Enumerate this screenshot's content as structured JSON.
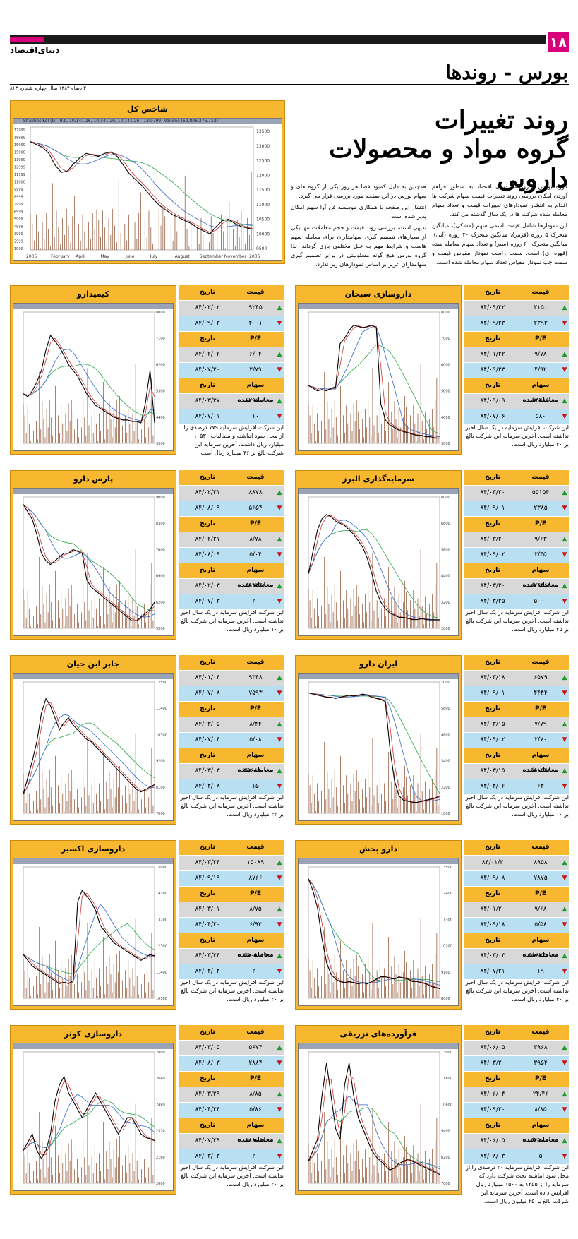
{
  "header": {
    "page_number": "۱۸",
    "brand": "دنیای‌اقتصاد",
    "section": "بورس - روندها",
    "dateline": "۲ دیماه ۱۳۸۴ سال چهارم شماره ۸۱۳"
  },
  "headline": {
    "line1": "روند تغییرات",
    "line2": "گروه مواد و محصولات دارویی"
  },
  "intro": {
    "col_right": [
      "گروه بورس - روزنامه دنیای اقتصاد به منظور فراهم آوردن امکان بررسی روند تغییرات قیمت سهام شرکت ها اقدام به انتشار نمودارهای تغییرات قیمت و تعداد سهام معامله شده شرکت ها در یک سال گذشته می کند.",
      "این نمودارها شامل قیمت اسمی سهم (مشکی)، میانگین متحرک ۵ روزه (قرمز)، میانگین متحرک ۲۰ روزه (آبی)، میانگین متحرک ۶۰ روزه (سبز) و تعداد سهام معامله شده (قهوه ای) است. سمت راست نمودار مقیاس قیمت و سمت چپ نمودار مقیاس تعداد سهام معامله شده است."
    ],
    "col_left": [
      "همچنین به دلیل کمبود فضا هر روز یکی از گروه های و سهام بورس در این صفحه مورد بررسی قرار می گیرد.",
      "انتشار این صفحه با همکاری موسسه فن آوا سهم امکان پذیر شده است.",
      "بدیهی است، بررسی روند قیمت و حجم معاملات تنها یکی از معیارهای تصمیم گیری سهامداران برای معامله سهم هاست و شرایط مهم به علل مختلفی بازی گرداند. لذا گروه بورس هیچ گونه مسئولیتی در برابر تصمیم گیری سهامداران عزیز بر اساس نمودارهای زیر ندارد."
    ]
  },
  "index": {
    "title": "شاخص کل",
    "topbar": "Shakhes Kol (D) (9.9, 10,141.26, 10,141.26, 10,141.26, -13.0799) Volume (69,806,276,712)",
    "chart_data": {
      "type": "line",
      "x_labels": [
        "2005",
        "February",
        "April",
        "May",
        "June",
        "July",
        "August",
        "September",
        "November",
        "2006"
      ],
      "y_ticks": [
        "13500",
        "13000",
        "12500",
        "12000",
        "11500",
        "11000",
        "10500",
        "10000",
        "9500"
      ],
      "y_left_ticks": [
        "17999",
        "16999",
        "15999",
        "15000",
        "13999",
        "12999",
        "11999",
        "11000",
        "9999",
        "8999",
        "7999",
        "6999",
        "5999",
        "4999",
        "3999",
        "2999",
        "1999"
      ],
      "price": [
        13100,
        13000,
        12900,
        12700,
        12300,
        12050,
        12100,
        12350,
        12550,
        12700,
        12650,
        12600,
        12700,
        12750,
        12600,
        12300,
        12000,
        11800,
        11600,
        11350,
        11100,
        10900,
        10750,
        10600,
        10500,
        10400,
        10300,
        10150,
        10050,
        9950,
        10200,
        10400,
        10450,
        10300,
        10200,
        10150,
        10100
      ],
      "ylim": [
        9400,
        13600
      ]
    }
  },
  "stocks": [
    {
      "name": "داروسازی سبحان",
      "headers": {
        "price": "قیمت",
        "date": "تاریخ",
        "pe": "P/E",
        "vol": "سهام معامله شده"
      },
      "price_rows": [
        {
          "val": "۲۱۵۰",
          "date": "۸۴/۰۹/۲۲",
          "dir": "up"
        },
        {
          "val": "۲۳۹۳",
          "date": "۸۴/۰۹/۲۳",
          "dir": "down"
        }
      ],
      "pe_rows": [
        {
          "val": "۹/۷۸",
          "date": "۸۴/۰۱/۲۲",
          "dir": "up"
        },
        {
          "val": "۴/۹۲",
          "date": "۸۴/۰۹/۲۳",
          "dir": "down"
        }
      ],
      "vol_rows": [
        {
          "val": "۳۴۴۸۵",
          "date": "۸۴/۰۹/۰۹",
          "dir": "up"
        },
        {
          "val": "۵۸۰",
          "date": "۸۴/۰۷/۰۶",
          "dir": "down"
        }
      ],
      "note": "این شرکت افزایش سرمایه در یک سال اخیر نداشته است. آخرین سرمایه این شرکت بالغ بر ۲۰ میلیارد ریال است.",
      "chart_data": {
        "type": "line",
        "price": [
          5200,
          5100,
          5000,
          5050,
          5000,
          5100,
          5150,
          6800,
          7000,
          7300,
          7500,
          7450,
          7400,
          7450,
          7500,
          7400,
          4500,
          3900,
          3700,
          3600,
          3500,
          3450,
          3400,
          3350,
          3300,
          3300,
          3250,
          3250,
          3200,
          3200
        ],
        "ylim": [
          3000,
          8000
        ]
      }
    },
    {
      "name": "کیمیدارو",
      "headers": {
        "price": "قیمت",
        "date": "تاریخ",
        "pe": "P/E",
        "vol": "سهام معامله شده"
      },
      "price_rows": [
        {
          "val": "۹۲۴۵",
          "date": "۸۴/۰۲/۰۲",
          "dir": "up"
        },
        {
          "val": "۴۰۰۱",
          "date": "۸۴/۰۹/۰۳",
          "dir": "down"
        }
      ],
      "pe_rows": [
        {
          "val": "۶/۰۴",
          "date": "۸۴/۰۲/۰۲",
          "dir": "up"
        },
        {
          "val": "۲/۷۹",
          "date": "۸۴/۰۷/۲۰",
          "dir": "down"
        }
      ],
      "vol_rows": [
        {
          "val": "۱۲۹۶۰۸",
          "date": "۸۴/۰۳/۲۷",
          "dir": "up"
        },
        {
          "val": "۱۰",
          "date": "۸۴/۰۷/۰۱",
          "dir": "down"
        }
      ],
      "note": "این شرکت افزایش سرمایه ۷۷۹ درصدی را از محل سود انباشته و مطالبات ۱۰۵۳۰ میلیارد ریال داشت. آخرین سرمایه این شرکت بالغ بر ۳۶ میلیارد ریال است.",
      "chart_data": {
        "type": "line",
        "price": [
          5200,
          5100,
          5300,
          5600,
          6000,
          6700,
          7200,
          7000,
          6800,
          6500,
          6200,
          6000,
          5800,
          5500,
          5200,
          5000,
          4800,
          4700,
          4600,
          4500,
          4400,
          4350,
          4300,
          4300,
          4250,
          4250,
          4200,
          4900,
          6000,
          4200
        ],
        "ylim": [
          3500,
          8000
        ]
      }
    },
    {
      "name": "سرمایه‌گذاری البرز",
      "headers": {
        "price": "قیمت",
        "date": "تاریخ",
        "pe": "P/E",
        "vol": "سهام معامله شده"
      },
      "price_rows": [
        {
          "val": "۵۵۱۵۴",
          "date": "۸۴/۰۳/۲۰",
          "dir": "up"
        },
        {
          "val": "۲۳۸۵",
          "date": "۸۴/۰۹/۰۱",
          "dir": "down"
        }
      ],
      "pe_rows": [
        {
          "val": "۹/۶۳",
          "date": "۸۴/۰۳/۲۰",
          "dir": "up"
        },
        {
          "val": "۲/۴۵",
          "date": "۸۴/۰۹/۰۲",
          "dir": "down"
        }
      ],
      "vol_rows": [
        {
          "val": "۲۷۴۴۶۴",
          "date": "۸۴/۰۳/۲۰",
          "dir": "up"
        },
        {
          "val": "۵۰۰۰",
          "date": "۸۴/۰۳/۲۵",
          "dir": "down"
        }
      ],
      "note": "این شرکت افزایش سرمایه در یک سال اخیر نداشته است. آخرین سرمایه این شرکت بالغ بر ۲۵ میلیارد ریال است.",
      "chart_data": {
        "type": "line",
        "price": [
          4500,
          5500,
          6500,
          7000,
          7200,
          7100,
          6900,
          6800,
          6700,
          6500,
          6300,
          6000,
          5700,
          5200,
          4500,
          3700,
          3200,
          2900,
          2700,
          2600,
          2500,
          2500,
          2450,
          2400,
          2400,
          2450,
          2400,
          2380,
          2390,
          2385
        ],
        "ylim": [
          2000,
          8000
        ]
      }
    },
    {
      "name": "پارس دارو",
      "headers": {
        "price": "قیمت",
        "date": "تاریخ",
        "pe": "P/E",
        "vol": "سهام معامله شده"
      },
      "price_rows": [
        {
          "val": "۸۸۷۸",
          "date": "۸۴/۰۲/۲۱",
          "dir": "up"
        },
        {
          "val": "۵۶۵۴",
          "date": "۸۴/۰۸/۰۹",
          "dir": "down"
        }
      ],
      "pe_rows": [
        {
          "val": "۸/۷۸",
          "date": "۸۴/۰۲/۲۱",
          "dir": "up"
        },
        {
          "val": "۵/۰۴",
          "date": "۸۴/۰۸/۰۹",
          "dir": "down"
        }
      ],
      "vol_rows": [
        {
          "val": "۴۹۳۳۴۲",
          "date": "۸۴/۰۲/۰۳",
          "dir": "up"
        },
        {
          "val": "۲۰",
          "date": "۸۴/۰۷/۰۳",
          "dir": "down"
        }
      ],
      "note": "این شرکت افزایش سرمایه در یک سال اخیر نداشته است. آخرین سرمایه این شرکت بالغ بر ۱۰ میلیارد ریال است.",
      "chart_data": {
        "type": "line",
        "price": [
          8800,
          8600,
          8400,
          8000,
          7500,
          7300,
          7200,
          7300,
          7400,
          7500,
          7500,
          7600,
          7550,
          7500,
          6800,
          6600,
          6500,
          6400,
          6300,
          6200,
          6100,
          6000,
          5900,
          5800,
          5700,
          5700,
          5800,
          5900,
          6000,
          6200
        ],
        "ylim": [
          5500,
          9000
        ]
      }
    },
    {
      "name": "ایران دارو",
      "headers": {
        "price": "قیمت",
        "date": "تاریخ",
        "pe": "P/E",
        "vol": "سهام معامله شده"
      },
      "price_rows": [
        {
          "val": "۶۵۷۹",
          "date": "۸۴/۰۳/۱۸",
          "dir": "up"
        },
        {
          "val": "۴۴۴۴",
          "date": "۸۴/۰۹/۰۱",
          "dir": "down"
        }
      ],
      "pe_rows": [
        {
          "val": "۷/۷۹",
          "date": "۸۴/۰۳/۱۵",
          "dir": "up"
        },
        {
          "val": "۲/۷۰",
          "date": "۸۴/۰۹/۰۲",
          "dir": "down"
        }
      ],
      "vol_rows": [
        {
          "val": "۵۵۱۵۴۳",
          "date": "۸۴/۰۳/۱۵",
          "dir": "up"
        },
        {
          "val": "۶۴",
          "date": "۸۴/۰۴/۰۶",
          "dir": "down"
        }
      ],
      "note": "این شرکت افزایش سرمایه در یک سال اخیر نداشته است. آخرین سرمایه این شرکت بالغ بر ۱۰ میلیارد ریال است.",
      "chart_data": {
        "type": "line",
        "price": [
          6500,
          6450,
          6400,
          6350,
          6300,
          6300,
          6250,
          6300,
          6350,
          6400,
          6350,
          6400,
          6450,
          6400,
          6300,
          6250,
          6200,
          6100,
          4000,
          2500,
          1800,
          1600,
          1550,
          1500,
          1500,
          1550,
          1600,
          1650,
          1700,
          1800
        ],
        "ylim": [
          1000,
          7000
        ]
      }
    },
    {
      "name": "جابر ابن حیان",
      "headers": {
        "price": "قیمت",
        "date": "تاریخ",
        "pe": "P/E",
        "vol": "سهام معامله شده"
      },
      "price_rows": [
        {
          "val": "۹۳۴۸",
          "date": "۸۴/۰۱/۰۴",
          "dir": "up"
        },
        {
          "val": "۷۵۹۳",
          "date": "۸۴/۰۷/۰۸",
          "dir": "down"
        }
      ],
      "pe_rows": [
        {
          "val": "۸/۴۴",
          "date": "۸۴/۰۳/۰۵",
          "dir": "up"
        },
        {
          "val": "۵/۰۸",
          "date": "۸۴/۰۷/۰۴",
          "dir": "down"
        }
      ],
      "vol_rows": [
        {
          "val": "۳۵۶۶۹۰۰",
          "date": "۸۴/۰۳/۰۳",
          "dir": "up"
        },
        {
          "val": "۱۵",
          "date": "۸۴/۰۴/۰۸",
          "dir": "down"
        }
      ],
      "note": "این شرکت افزایش سرمایه در یک سال اخیر نداشته است. آخرین سرمایه این شرکت بالغ بر ۳۲ میلیارد ریال است.",
      "chart_data": {
        "type": "line",
        "price": [
          7800,
          8500,
          9200,
          10000,
          11200,
          11800,
          11500,
          11000,
          10500,
          10800,
          11000,
          10700,
          10500,
          10300,
          10100,
          10000,
          9800,
          9600,
          9400,
          9200,
          9000,
          8800,
          8600,
          8400,
          8200,
          8000,
          7900,
          8000,
          8100,
          8200
        ],
        "ylim": [
          7000,
          12500
        ]
      }
    },
    {
      "name": "دارو پخش",
      "headers": {
        "price": "قیمت",
        "date": "تاریخ",
        "pe": "P/E",
        "vol": "سهام معامله شده"
      },
      "price_rows": [
        {
          "val": "۸۹۵۸",
          "date": "۸۴/۰۱/۲",
          "dir": "up"
        },
        {
          "val": "۷۸۷۵",
          "date": "۸۴/۰۹/۰۸",
          "dir": "down"
        }
      ],
      "pe_rows": [
        {
          "val": "۹/۶۸",
          "date": "۸۴/۰۱/۲۰",
          "dir": "up"
        },
        {
          "val": "۵/۵۸",
          "date": "۸۴/۰۹/۱۸",
          "dir": "down"
        }
      ],
      "vol_rows": [
        {
          "val": "۴۸۸۳۴۰۰",
          "date": "۸۴/۰۳/۰۳",
          "dir": "up"
        },
        {
          "val": "۱۹",
          "date": "۸۴/۰۷/۲۱",
          "dir": "down"
        }
      ],
      "note": "این شرکت افزایش سرمایه در یک سال اخیر نداشته است. آخرین سرمایه این شرکت بالغ بر ۳۰ میلیارد ریال است.",
      "chart_data": {
        "type": "line",
        "price": [
          13000,
          12500,
          11800,
          10500,
          9500,
          9000,
          8800,
          8700,
          8650,
          8700,
          8650,
          8600,
          8650,
          8600,
          8700,
          8800,
          8900,
          8900,
          8850,
          8800,
          8900,
          8850,
          8800,
          8700,
          8700,
          8650,
          8600,
          8500,
          8450,
          8400
        ],
        "ylim": [
          8000,
          13500
        ]
      }
    },
    {
      "name": "داروسازی اکسیر",
      "headers": {
        "price": "قیمت",
        "date": "تاریخ",
        "pe": "P/E",
        "vol": "سهام معامله شده"
      },
      "price_rows": [
        {
          "val": "۱۵۰۸۹",
          "date": "۸۴/۰۳/۲۴",
          "dir": "up"
        },
        {
          "val": "۸۷۶۶",
          "date": "۸۴/۰۹/۱۹",
          "dir": "down"
        }
      ],
      "pe_rows": [
        {
          "val": "۸/۷۵",
          "date": "۸۴/۰۳/۰۱",
          "dir": "up"
        },
        {
          "val": "۶/۹۳",
          "date": "۸۴/۰۴/۲۰",
          "dir": "down"
        }
      ],
      "vol_rows": [
        {
          "val": "۳۶۰۵۱۶۹",
          "date": "۸۴/۰۳/۲۴",
          "dir": "up"
        },
        {
          "val": "۲۰",
          "date": "۸۴/۰۴/۰۴",
          "dir": "down"
        }
      ],
      "note": "این شرکت افزایش سرمایه در یک سال اخیر نداشته است. آخرین سرمایه این شرکت بالغ بر ۲۰ میلیارد ریال است.",
      "chart_data": {
        "type": "line",
        "price": [
          12000,
          11800,
          11600,
          11500,
          11400,
          11300,
          11200,
          11100,
          11000,
          11050,
          11000,
          11100,
          13800,
          14200,
          14000,
          13800,
          13500,
          13000,
          12800,
          12600,
          12400,
          12300,
          12200,
          12100,
          12000,
          11900,
          11800,
          11900,
          12000,
          11950
        ],
        "ylim": [
          10500,
          15000
        ]
      }
    },
    {
      "name": "فرآورده‌های تزریقی",
      "headers": {
        "price": "قیمت",
        "date": "تاریخ",
        "pe": "P/E",
        "vol": "سهام معامله شده"
      },
      "price_rows": [
        {
          "val": "۳۹۶۸",
          "date": "۸۴/۰۶/۰۵",
          "dir": "up"
        },
        {
          "val": "۳۹۵۴",
          "date": "۸۴/۰۳/۲۰",
          "dir": "down"
        }
      ],
      "pe_rows": [
        {
          "val": "۲۴/۴۶",
          "date": "۸۴/۰۶/۰۴",
          "dir": "up"
        },
        {
          "val": "۸/۸۵",
          "date": "۸۴/۰۹/۲۰",
          "dir": "down"
        }
      ],
      "vol_rows": [
        {
          "val": "۳۴۵۰۰۰",
          "date": "۸۴/۰۶/۰۵",
          "dir": "up"
        },
        {
          "val": "۵",
          "date": "۸۴/۰۸/۰۳",
          "dir": "down"
        }
      ],
      "note": "این شرکت افزایش سرمایه ۲۰ درصدی را از محل سود انباشته تحت شرکت دارد که سرمایه را از ۱۲۵۵ به ۱۵۰۰ میلیارد ریال افزایش داده است. آخرین سرمایه این شرکت بالغ بر ۲۵ میلیون ریال است.",
      "chart_data": {
        "type": "line",
        "price": [
          8000,
          8500,
          9000,
          11000,
          12500,
          11000,
          9500,
          9000,
          11500,
          12500,
          11000,
          10000,
          9500,
          9000,
          8500,
          8200,
          8000,
          7800,
          7600,
          7700,
          7900,
          8000,
          8100,
          8000,
          7900,
          7800,
          7700,
          7600,
          7500,
          7400
        ],
        "ylim": [
          7000,
          13000
        ]
      }
    },
    {
      "name": "داروسازی کوثر",
      "headers": {
        "price": "قیمت",
        "date": "تاریخ",
        "pe": "P/E",
        "vol": "سهام معامله شده"
      },
      "price_rows": [
        {
          "val": "۵۶۷۴",
          "date": "۸۴/۰۳/۰۵",
          "dir": "up"
        },
        {
          "val": "۲۸۸۴",
          "date": "۸۴/۰۸/۰۳",
          "dir": "down"
        }
      ],
      "pe_rows": [
        {
          "val": "۸/۸۵",
          "date": "۸۴/۰۳/۲۹",
          "dir": "up"
        },
        {
          "val": "۵/۸۶",
          "date": "۸۴/۰۴/۲۴",
          "dir": "down"
        }
      ],
      "vol_rows": [
        {
          "val": "۱۸۸۰۶۷",
          "date": "۸۴/۰۷/۲۹",
          "dir": "up"
        },
        {
          "val": "۲۰",
          "date": "۸۴/۰۳/۰۳",
          "dir": "down"
        }
      ],
      "note": "این شرکت افزایش سرمایه در یک سال اخیر نداشته است. آخرین سرمایه این شرکت بالغ بر ۲۰ میلیارد ریال است.",
      "chart_data": {
        "type": "line",
        "price": [
          2200,
          2250,
          2300,
          2200,
          2150,
          2200,
          2300,
          2500,
          2600,
          2650,
          2550,
          2500,
          2450,
          2400,
          2450,
          2500,
          2550,
          2500,
          2450,
          2400,
          2350,
          2300,
          2350,
          2400,
          2400,
          2350,
          2300,
          2280,
          2270,
          2260
        ],
        "ylim": [
          2000,
          2800
        ]
      }
    }
  ]
}
